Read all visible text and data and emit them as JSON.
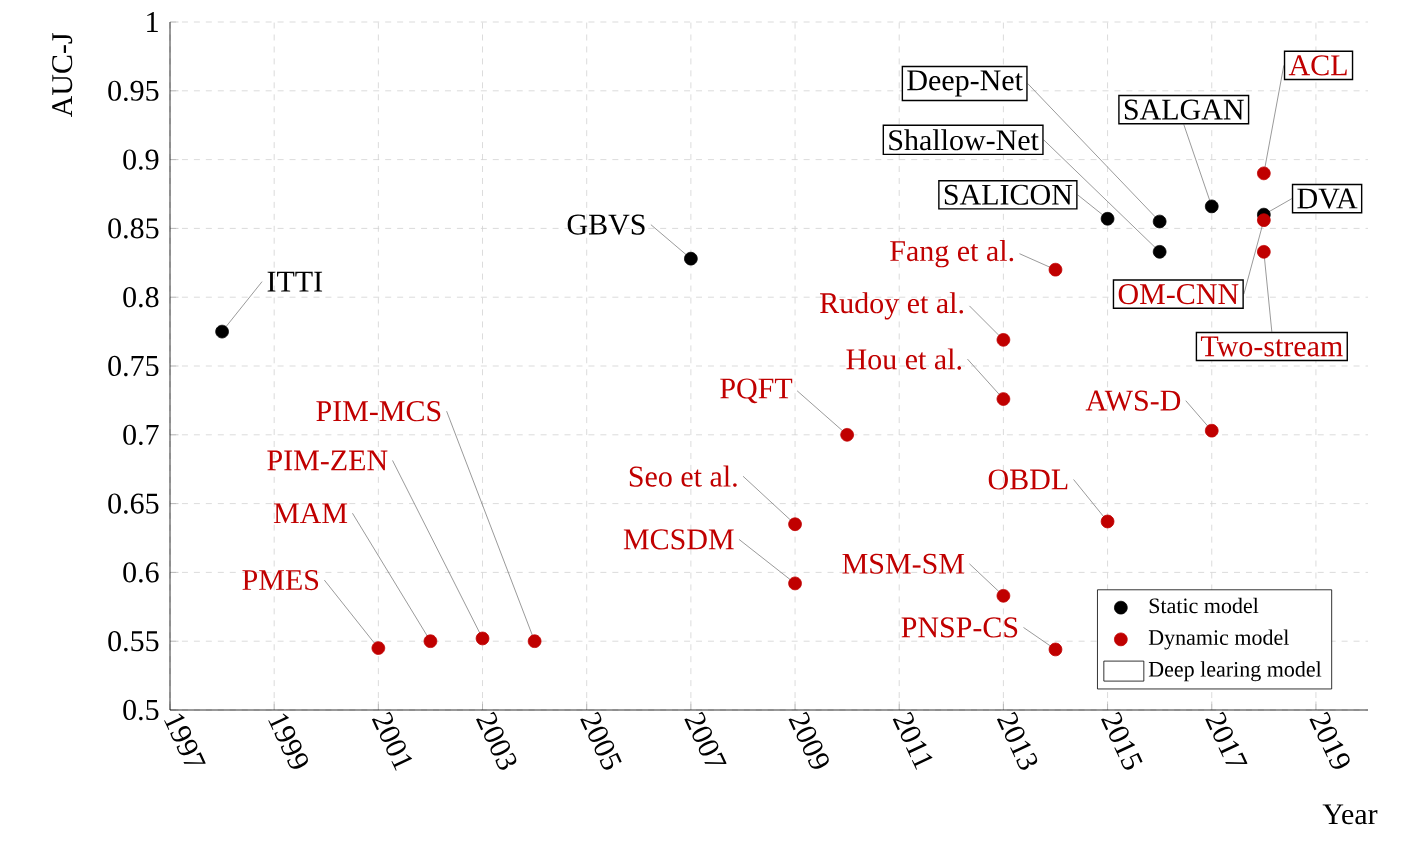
{
  "chart_data": {
    "type": "scatter",
    "xlabel": "Year",
    "ylabel": "AUC-J",
    "xlim": [
      1997,
      2020
    ],
    "ylim": [
      0.5,
      1
    ],
    "xticks": [
      1997,
      1999,
      2001,
      2003,
      2005,
      2007,
      2009,
      2011,
      2013,
      2015,
      2017,
      2019
    ],
    "yticks": [
      0.5,
      0.55,
      0.6,
      0.65,
      0.7,
      0.75,
      0.8,
      0.85,
      0.9,
      0.95,
      1
    ],
    "grid": true,
    "legend": "bottom right",
    "marker": "circle",
    "series": [
      {
        "name": "Static model",
        "color": "#000000",
        "x": [
          1998,
          2007
        ],
        "values": [
          0.775,
          0.828
        ]
      },
      {
        "name": "Dynamic model",
        "color": "#c00000",
        "x": [
          2001,
          2002,
          2003,
          2004,
          2009,
          2009,
          2010,
          2013,
          2013,
          2013,
          2014,
          2014,
          2015,
          2017
        ],
        "values": [
          0.545,
          0.55,
          0.552,
          0.55,
          0.635,
          0.592,
          0.7,
          0.769,
          0.726,
          0.583,
          0.82,
          0.544,
          0.637,
          0.703
        ]
      },
      {
        "color": "#000000",
        "x": [
          2015,
          2016,
          2016,
          2017,
          2018
        ],
        "values": [
          0.857,
          0.855,
          0.833,
          0.866,
          0.86
        ]
      },
      {
        "color": "#c00000",
        "x": [
          2018,
          2018,
          2018
        ],
        "values": [
          0.89,
          0.856,
          0.833
        ]
      }
    ],
    "annotations": [
      {
        "text": "ITTI",
        "x": 1998,
        "y": 0.775
      },
      {
        "text": "GBVS",
        "x": 2007,
        "y": 0.828
      },
      {
        "text": "PMES",
        "x": 2001,
        "y": 0.545
      },
      {
        "text": "MAM",
        "x": 2002,
        "y": 0.55
      },
      {
        "text": "PIM-ZEN",
        "x": 2003,
        "y": 0.552
      },
      {
        "text": "PIM-MCS",
        "x": 2004,
        "y": 0.55
      },
      {
        "text": "PQFT",
        "x": 2010,
        "y": 0.7
      },
      {
        "text": "Seo et al.",
        "x": 2009,
        "y": 0.635
      },
      {
        "text": "MCSDM",
        "x": 2009,
        "y": 0.592
      },
      {
        "text": "Fang et al.",
        "x": 2014,
        "y": 0.82
      },
      {
        "text": "Rudoy et al.",
        "x": 2013,
        "y": 0.769
      },
      {
        "text": "Hou et al.",
        "x": 2013,
        "y": 0.726
      },
      {
        "text": "MSM-SM",
        "x": 2013,
        "y": 0.583
      },
      {
        "text": "PNSP-CS",
        "x": 2014,
        "y": 0.544
      },
      {
        "text": "OBDL",
        "x": 2015,
        "y": 0.637
      },
      {
        "text": "AWS-D",
        "x": 2017,
        "y": 0.703
      },
      {
        "text": "SALICON",
        "x": 2015,
        "y": 0.857
      },
      {
        "text": "Shallow-Net",
        "x": 2016,
        "y": 0.833
      },
      {
        "text": "Deep-Net",
        "x": 2016,
        "y": 0.855
      },
      {
        "text": "SALGAN",
        "x": 2017,
        "y": 0.866
      },
      {
        "text": "ACL",
        "x": 2018,
        "y": 0.89
      },
      {
        "text": "DVA",
        "x": 2018,
        "y": 0.86
      },
      {
        "text": "OM-CNN",
        "x": 2018,
        "y": 0.856
      },
      {
        "text": "Two-stream",
        "x": 2018,
        "y": 0.833
      },
      "Deep learing model"
    ]
  }
}
